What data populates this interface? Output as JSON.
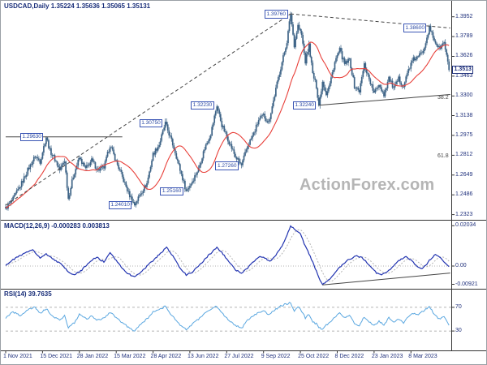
{
  "meta": {
    "watermark": "ActionForex.com"
  },
  "main_panel": {
    "title": "USDCAD,Daily 1.35224 1.35636 1.35065 1.35131",
    "y_axis": [
      {
        "text": "1.3952",
        "value": 1.3952
      },
      {
        "text": "1.3789",
        "value": 1.3789
      },
      {
        "text": "1.3626",
        "value": 1.3626
      },
      {
        "text": "1.3463",
        "value": 1.3463
      },
      {
        "text": "1.3300",
        "value": 1.33
      },
      {
        "text": "1.3138",
        "value": 1.3138
      },
      {
        "text": "1.2975",
        "value": 1.2975
      },
      {
        "text": "1.2812",
        "value": 1.2812
      },
      {
        "text": "1.2649",
        "value": 1.2649
      },
      {
        "text": "1.2486",
        "value": 1.2486
      },
      {
        "text": "1.2323",
        "value": 1.2323
      }
    ],
    "current_price": {
      "text": "1.3513",
      "value": 1.35131
    },
    "swing_labels": [
      {
        "text": "1.39760",
        "bar": 232,
        "price": 1.3976
      },
      {
        "text": "1.38600",
        "bar": 345,
        "price": 1.386
      },
      {
        "text": "1.32230",
        "bar": 172,
        "price": 1.3223
      },
      {
        "text": "1.32240",
        "bar": 255,
        "price": 1.3224
      },
      {
        "text": "1.30750",
        "bar": 130,
        "price": 1.3075
      },
      {
        "text": "1.29630",
        "bar": 33,
        "price": 1.2963
      },
      {
        "text": "1.27260",
        "bar": 192,
        "price": 1.2726
      },
      {
        "text": "1.25160",
        "bar": 147,
        "price": 1.2516
      },
      {
        "text": "1.24010",
        "bar": 105,
        "price": 1.2401
      }
    ],
    "fib_labels": [
      {
        "text": "38.2",
        "price": 1.3285
      },
      {
        "text": "61.8",
        "price": 1.28
      }
    ]
  },
  "macd_panel": {
    "label": "MACD(12,26,9) -0.000283 0.003813",
    "y_axis": [
      {
        "text": "0.02034",
        "value": 0.0203
      },
      {
        "text": "0.00",
        "value": 0
      },
      {
        "text": "-0.00921",
        "value": -0.0092
      }
    ]
  },
  "rsi_panel": {
    "label": "RSI(14) 39.7635",
    "y_axis": [
      {
        "text": "70",
        "value": 70
      },
      {
        "text": "30",
        "value": 30
      }
    ]
  },
  "x_axis": {
    "labels": [
      {
        "text": "1 Nov 2021",
        "bar": 0
      },
      {
        "text": "15 Dec 2021",
        "bar": 30
      },
      {
        "text": "28 Jan 2022",
        "bar": 60
      },
      {
        "text": "15 Mar 2022",
        "bar": 90
      },
      {
        "text": "28 Apr 2022",
        "bar": 120
      },
      {
        "text": "13 Jun 2022",
        "bar": 150
      },
      {
        "text": "27 Jul 2022",
        "bar": 180
      },
      {
        "text": "9 Sep 2022",
        "bar": 210
      },
      {
        "text": "25 Oct 2022",
        "bar": 240
      },
      {
        "text": "8 Dec 2022",
        "bar": 270
      },
      {
        "text": "23 Jan 2023",
        "bar": 300
      },
      {
        "text": "8 Mar 2023",
        "bar": 330
      }
    ]
  },
  "chart_data": {
    "type": "candlestick",
    "symbol": "USDCAD",
    "timeframe": "Daily",
    "ohlc_current": {
      "open": 1.35224,
      "high": 1.35636,
      "low": 1.35065,
      "close": 1.35131
    },
    "bars": 362,
    "price_axis": {
      "min": 1.23,
      "max": 1.399
    },
    "colors": {
      "candle": "#3d6386",
      "ma": "#e8403a",
      "macd": "#2133b0",
      "macd_signal": "#b5b5b5",
      "rsi": "#5aa7e0"
    },
    "ma_window": 25,
    "price_path": [
      [
        0,
        1.2375
      ],
      [
        6,
        1.245
      ],
      [
        12,
        1.256
      ],
      [
        18,
        1.269
      ],
      [
        24,
        1.2805
      ],
      [
        28,
        1.276
      ],
      [
        33,
        1.2963
      ],
      [
        36,
        1.285
      ],
      [
        40,
        1.278
      ],
      [
        44,
        1.269
      ],
      [
        48,
        1.277
      ],
      [
        51,
        1.2455
      ],
      [
        55,
        1.264
      ],
      [
        60,
        1.279
      ],
      [
        65,
        1.27
      ],
      [
        70,
        1.277
      ],
      [
        75,
        1.269
      ],
      [
        80,
        1.271
      ],
      [
        85,
        1.2895
      ],
      [
        90,
        1.276
      ],
      [
        95,
        1.263
      ],
      [
        100,
        1.25
      ],
      [
        105,
        1.2403
      ],
      [
        110,
        1.25
      ],
      [
        115,
        1.258
      ],
      [
        120,
        1.282
      ],
      [
        125,
        1.29
      ],
      [
        130,
        1.3075
      ],
      [
        134,
        1.296
      ],
      [
        138,
        1.284
      ],
      [
        142,
        1.269
      ],
      [
        147,
        1.2516
      ],
      [
        152,
        1.26
      ],
      [
        157,
        1.27
      ],
      [
        162,
        1.287
      ],
      [
        167,
        1.299
      ],
      [
        172,
        1.3223
      ],
      [
        176,
        1.306
      ],
      [
        182,
        1.292
      ],
      [
        187,
        1.28
      ],
      [
        192,
        1.2726
      ],
      [
        197,
        1.289
      ],
      [
        202,
        1.299
      ],
      [
        206,
        1.31
      ],
      [
        210,
        1.314
      ],
      [
        214,
        1.308
      ],
      [
        218,
        1.326
      ],
      [
        222,
        1.345
      ],
      [
        226,
        1.362
      ],
      [
        229,
        1.375
      ],
      [
        232,
        1.3976
      ],
      [
        235,
        1.372
      ],
      [
        238,
        1.388
      ],
      [
        241,
        1.38
      ],
      [
        244,
        1.358
      ],
      [
        247,
        1.372
      ],
      [
        250,
        1.348
      ],
      [
        253,
        1.338
      ],
      [
        255,
        1.3224
      ],
      [
        258,
        1.342
      ],
      [
        261,
        1.332
      ],
      [
        264,
        1.34
      ],
      [
        268,
        1.358
      ],
      [
        272,
        1.368
      ],
      [
        276,
        1.356
      ],
      [
        280,
        1.36
      ],
      [
        284,
        1.338
      ],
      [
        288,
        1.334
      ],
      [
        292,
        1.356
      ],
      [
        296,
        1.344
      ],
      [
        300,
        1.332
      ],
      [
        304,
        1.34
      ],
      [
        308,
        1.331
      ],
      [
        312,
        1.345
      ],
      [
        316,
        1.336
      ],
      [
        320,
        1.344
      ],
      [
        324,
        1.338
      ],
      [
        328,
        1.352
      ],
      [
        332,
        1.36
      ],
      [
        336,
        1.362
      ],
      [
        340,
        1.368
      ],
      [
        345,
        1.386
      ],
      [
        349,
        1.376
      ],
      [
        353,
        1.369
      ],
      [
        357,
        1.374
      ],
      [
        361,
        1.3513
      ]
    ],
    "trendlines": [
      {
        "b1": 0,
        "p1": 1.24,
        "b2": 232,
        "p2": 1.3976,
        "dash": true
      },
      {
        "b1": 232,
        "p1": 1.3976,
        "b2": 362,
        "p2": 1.386,
        "dash": true
      },
      {
        "b1": 255,
        "p1": 1.3224,
        "b2": 362,
        "p2": 1.3312,
        "dash": false
      },
      {
        "b1": 0,
        "p1": 1.2963,
        "b2": 95,
        "p2": 1.2963,
        "dash": false
      }
    ],
    "macd": {
      "label": "MACD(12,26,9)",
      "current": -0.000283,
      "signal": 0.003813,
      "trendline": {
        "b1": 258,
        "v1": -0.0095,
        "b2": 362,
        "v2": -0.0035
      },
      "anchors": [
        [
          0,
          0.0005
        ],
        [
          8,
          0.004
        ],
        [
          16,
          0.0065
        ],
        [
          22,
          0.0085
        ],
        [
          28,
          0.004
        ],
        [
          33,
          0.006
        ],
        [
          40,
          0.003
        ],
        [
          46,
          0.0005
        ],
        [
          51,
          -0.003
        ],
        [
          56,
          -0.0045
        ],
        [
          62,
          -0.002
        ],
        [
          68,
          0.002
        ],
        [
          74,
          0.0045
        ],
        [
          80,
          0.002
        ],
        [
          85,
          0.0065
        ],
        [
          90,
          0.003
        ],
        [
          95,
          -0.001
        ],
        [
          100,
          -0.004
        ],
        [
          105,
          -0.0055
        ],
        [
          110,
          -0.003
        ],
        [
          116,
          0.0005
        ],
        [
          122,
          0.004
        ],
        [
          127,
          0.007
        ],
        [
          131,
          0.0095
        ],
        [
          136,
          0.005
        ],
        [
          141,
          0.0
        ],
        [
          147,
          -0.0045
        ],
        [
          152,
          -0.003
        ],
        [
          158,
          0.0005
        ],
        [
          163,
          0.004
        ],
        [
          168,
          0.007
        ],
        [
          172,
          0.0095
        ],
        [
          177,
          0.006
        ],
        [
          182,
          0.002
        ],
        [
          187,
          -0.002
        ],
        [
          192,
          -0.0035
        ],
        [
          197,
          -0.001
        ],
        [
          202,
          0.0025
        ],
        [
          207,
          0.005
        ],
        [
          211,
          0.004
        ],
        [
          215,
          0.0025
        ],
        [
          219,
          0.0045
        ],
        [
          224,
          0.009
        ],
        [
          228,
          0.014
        ],
        [
          232,
          0.0203
        ],
        [
          236,
          0.018
        ],
        [
          240,
          0.016
        ],
        [
          244,
          0.01
        ],
        [
          248,
          0.005
        ],
        [
          252,
          -0.001
        ],
        [
          255,
          -0.006
        ],
        [
          258,
          -0.0092
        ],
        [
          262,
          -0.0075
        ],
        [
          266,
          -0.005
        ],
        [
          270,
          -0.002
        ],
        [
          275,
          0.001
        ],
        [
          280,
          0.0035
        ],
        [
          285,
          0.005
        ],
        [
          290,
          0.0045
        ],
        [
          294,
          0.002
        ],
        [
          298,
          -0.001
        ],
        [
          302,
          -0.0035
        ],
        [
          306,
          -0.0045
        ],
        [
          310,
          -0.003
        ],
        [
          314,
          -0.001
        ],
        [
          318,
          0.0015
        ],
        [
          322,
          0.0035
        ],
        [
          326,
          0.0045
        ],
        [
          330,
          0.003
        ],
        [
          334,
          0.0005
        ],
        [
          338,
          -0.0015
        ],
        [
          342,
          0.0005
        ],
        [
          346,
          0.0035
        ],
        [
          350,
          0.006
        ],
        [
          354,
          0.004
        ],
        [
          357,
          0.002
        ],
        [
          361,
          -0.000283
        ]
      ]
    },
    "rsi": {
      "label": "RSI(14)",
      "current": 39.7635,
      "levels": [
        70,
        30
      ],
      "anchors": [
        [
          0,
          52
        ],
        [
          6,
          62
        ],
        [
          12,
          56
        ],
        [
          18,
          66
        ],
        [
          24,
          70
        ],
        [
          28,
          60
        ],
        [
          33,
          68
        ],
        [
          38,
          55
        ],
        [
          44,
          48
        ],
        [
          48,
          56
        ],
        [
          51,
          36
        ],
        [
          56,
          44
        ],
        [
          60,
          58
        ],
        [
          66,
          50
        ],
        [
          70,
          56
        ],
        [
          75,
          48
        ],
        [
          80,
          52
        ],
        [
          85,
          62
        ],
        [
          90,
          52
        ],
        [
          95,
          44
        ],
        [
          100,
          36
        ],
        [
          105,
          30
        ],
        [
          110,
          42
        ],
        [
          115,
          50
        ],
        [
          120,
          62
        ],
        [
          125,
          66
        ],
        [
          130,
          72
        ],
        [
          134,
          60
        ],
        [
          138,
          50
        ],
        [
          142,
          40
        ],
        [
          147,
          32
        ],
        [
          152,
          42
        ],
        [
          157,
          50
        ],
        [
          162,
          60
        ],
        [
          167,
          66
        ],
        [
          172,
          72
        ],
        [
          176,
          60
        ],
        [
          182,
          48
        ],
        [
          187,
          40
        ],
        [
          192,
          34
        ],
        [
          197,
          48
        ],
        [
          202,
          56
        ],
        [
          206,
          62
        ],
        [
          210,
          64
        ],
        [
          214,
          58
        ],
        [
          218,
          64
        ],
        [
          222,
          70
        ],
        [
          226,
          74
        ],
        [
          229,
          76
        ],
        [
          232,
          78
        ],
        [
          235,
          64
        ],
        [
          238,
          70
        ],
        [
          241,
          64
        ],
        [
          244,
          52
        ],
        [
          247,
          58
        ],
        [
          250,
          46
        ],
        [
          253,
          42
        ],
        [
          255,
          36
        ],
        [
          258,
          32
        ],
        [
          261,
          40
        ],
        [
          264,
          44
        ],
        [
          268,
          54
        ],
        [
          272,
          60
        ],
        [
          276,
          52
        ],
        [
          280,
          56
        ],
        [
          284,
          42
        ],
        [
          288,
          40
        ],
        [
          292,
          54
        ],
        [
          296,
          46
        ],
        [
          300,
          40
        ],
        [
          304,
          46
        ],
        [
          308,
          40
        ],
        [
          312,
          52
        ],
        [
          316,
          44
        ],
        [
          320,
          50
        ],
        [
          324,
          44
        ],
        [
          328,
          54
        ],
        [
          332,
          60
        ],
        [
          336,
          58
        ],
        [
          340,
          64
        ],
        [
          345,
          72
        ],
        [
          349,
          58
        ],
        [
          353,
          50
        ],
        [
          357,
          55
        ],
        [
          361,
          39.76
        ]
      ]
    }
  }
}
